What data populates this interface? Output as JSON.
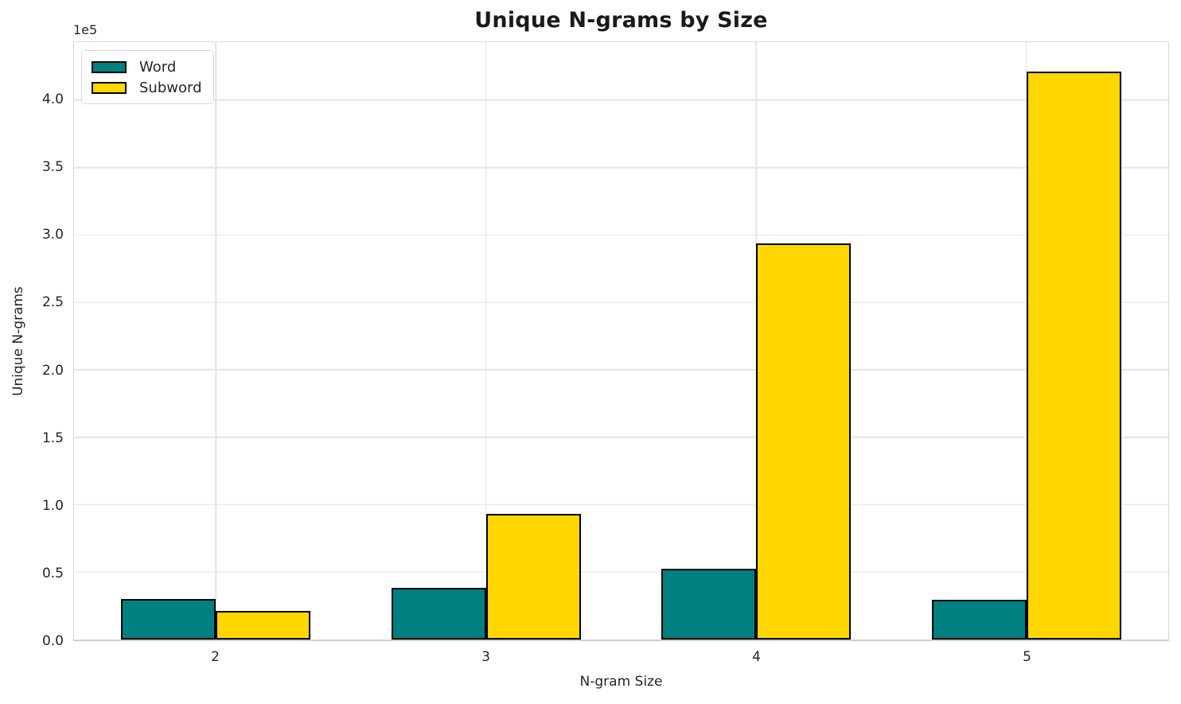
{
  "chart_data": {
    "type": "bar",
    "title": "Unique N-grams by Size",
    "xlabel": "N-gram Size",
    "ylabel": "Unique N-grams",
    "y_offset_label": "1e5",
    "categories": [
      "2",
      "3",
      "4",
      "5"
    ],
    "series": [
      {
        "name": "Word",
        "color": "#008080",
        "values": [
          30000,
          38500,
          52500,
          29500
        ]
      },
      {
        "name": "Subword",
        "color": "#FFD700",
        "values": [
          21000,
          93000,
          294000,
          421000
        ]
      }
    ],
    "yticks": [
      0.0,
      0.5,
      1.0,
      1.5,
      2.0,
      2.5,
      3.0,
      3.5,
      4.0
    ],
    "ytick_scale": 100000,
    "ylim": [
      0,
      443000
    ],
    "xlim": [
      -0.525,
      3.525
    ],
    "bar_width": 0.35,
    "grid": true,
    "legend_position": "upper left",
    "colors": {
      "bar_edge": "#000000",
      "gridline": "#e4e4e4",
      "axis_border": "#d9d9d9",
      "text": "#262626"
    }
  }
}
